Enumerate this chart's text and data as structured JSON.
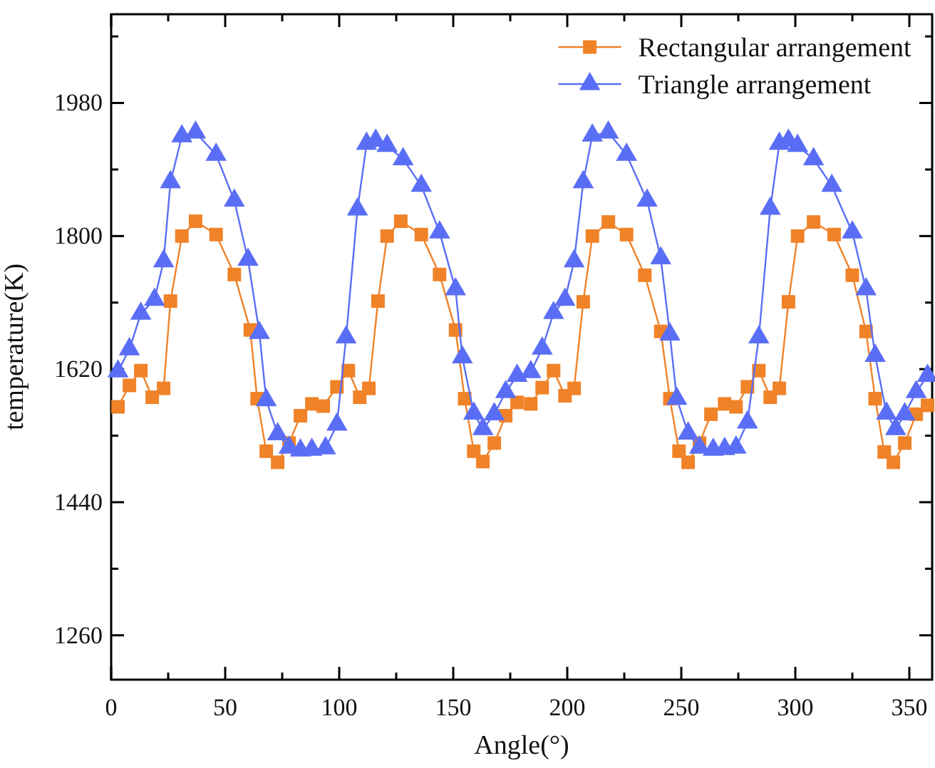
{
  "chart_data": {
    "type": "line",
    "xlabel": "Angle(°)",
    "ylabel": "temperature(K)",
    "xlim": [
      0,
      360
    ],
    "ylim": [
      1200,
      2100
    ],
    "xticks": [
      0,
      {
        "value": 25,
        "label": null
      },
      50,
      {
        "value": 75,
        "label": null
      },
      100,
      {
        "value": 125,
        "label": null
      },
      150,
      {
        "value": 175,
        "label": null
      },
      200,
      {
        "value": 225,
        "label": null
      },
      250,
      {
        "value": 275,
        "label": null
      },
      300,
      {
        "value": 325,
        "label": null
      },
      350
    ],
    "yticks": [
      1260,
      {
        "value": 1350,
        "label": null
      },
      1440,
      {
        "value": 1530,
        "label": null
      },
      1620,
      {
        "value": 1710,
        "label": null
      },
      1800,
      {
        "value": 1890,
        "label": null
      },
      1980,
      {
        "value": 2070,
        "label": null
      }
    ],
    "grid": false,
    "legend": "top right",
    "line_style": "solid",
    "series": [
      {
        "name": "Rectangular arrangement",
        "color": "#f08228",
        "marker": "square",
        "x": [
          3,
          8,
          13,
          18,
          23,
          26,
          31,
          37,
          46,
          54,
          61,
          64,
          68,
          73,
          78,
          83,
          88,
          93,
          99,
          104,
          109,
          113,
          117,
          121,
          127,
          136,
          144,
          151,
          155,
          159,
          163,
          168,
          173,
          178,
          184,
          189,
          194,
          199,
          203,
          207,
          211,
          218,
          226,
          234,
          241,
          245,
          249,
          253,
          258,
          263,
          269,
          274,
          279,
          284,
          289,
          293,
          297,
          301,
          308,
          317,
          325,
          331,
          335,
          339,
          343,
          348,
          353,
          358
        ],
        "values": [
          1569,
          1598,
          1618,
          1582,
          1594,
          1712,
          1800,
          1820,
          1802,
          1748,
          1673,
          1580,
          1509,
          1494,
          1520,
          1557,
          1573,
          1570,
          1596,
          1618,
          1582,
          1594,
          1712,
          1800,
          1820,
          1802,
          1748,
          1673,
          1580,
          1509,
          1495,
          1520,
          1557,
          1575,
          1573,
          1595,
          1618,
          1584,
          1594,
          1711,
          1800,
          1819,
          1802,
          1747,
          1671,
          1580,
          1509,
          1494,
          1520,
          1559,
          1573,
          1569,
          1596,
          1618,
          1582,
          1594,
          1711,
          1800,
          1819,
          1802,
          1747,
          1671,
          1580,
          1508,
          1494,
          1520,
          1559,
          1571
        ]
      },
      {
        "name": "Triangle arrangement",
        "color": "#5a6ef5",
        "marker": "triangle",
        "x": [
          3,
          8,
          13,
          19,
          23,
          26,
          31,
          37,
          46,
          54,
          60,
          65,
          68,
          73,
          78,
          83,
          88,
          94,
          99,
          103,
          108,
          112,
          116,
          121,
          128,
          136,
          144,
          151,
          154,
          159,
          163,
          168,
          173,
          178,
          184,
          189,
          194,
          199,
          203,
          207,
          211,
          218,
          226,
          235,
          241,
          245,
          248,
          253,
          258,
          264,
          269,
          274,
          279,
          284,
          289,
          293,
          297,
          301,
          308,
          316,
          325,
          331,
          335,
          340,
          344,
          348,
          353,
          358
        ],
        "values": [
          1617,
          1647,
          1695,
          1714,
          1766,
          1873,
          1935,
          1940,
          1910,
          1848,
          1768,
          1669,
          1578,
          1532,
          1514,
          1510,
          1511,
          1513,
          1545,
          1663,
          1836,
          1925,
          1929,
          1922,
          1904,
          1868,
          1805,
          1728,
          1636,
          1560,
          1539,
          1559,
          1589,
          1611,
          1616,
          1648,
          1696,
          1714,
          1766,
          1873,
          1936,
          1940,
          1910,
          1848,
          1770,
          1667,
          1580,
          1533,
          1514,
          1511,
          1512,
          1514,
          1548,
          1663,
          1837,
          1925,
          1929,
          1922,
          1904,
          1868,
          1805,
          1728,
          1638,
          1560,
          1539,
          1559,
          1589,
          1611
        ]
      }
    ]
  }
}
